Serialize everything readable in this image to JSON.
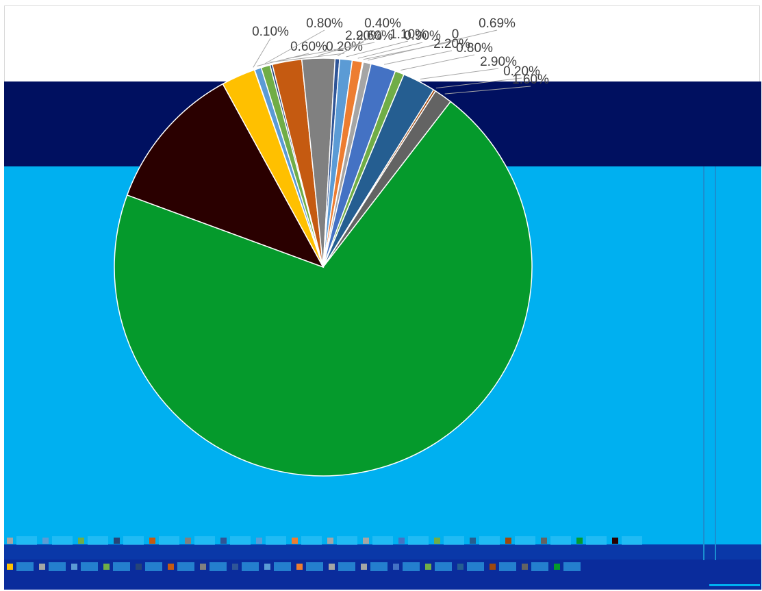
{
  "chart_data": {
    "type": "pie",
    "title": "",
    "slices": [
      {
        "label": "0.10%",
        "value": 0.1,
        "color": "#a5a5a5"
      },
      {
        "label": "0.60%",
        "value": 0.6,
        "color": "#5b9bd5"
      },
      {
        "label": "0.80%",
        "value": 0.8,
        "color": "#70ad47"
      },
      {
        "label": "0.20%",
        "value": 0.2,
        "color": "#264478"
      },
      {
        "label": "2.60%",
        "value": 2.6,
        "color": "#c55a11"
      },
      {
        "label": "2.90%",
        "value": 2.9,
        "color": "#808080"
      },
      {
        "label": "0.40%",
        "value": 0.4,
        "color": "#2f5597"
      },
      {
        "label": "1.10%",
        "value": 1.1,
        "color": "#5b9bd5"
      },
      {
        "label": "0.90%",
        "value": 0.9,
        "color": "#ed7d31"
      },
      {
        "label": "0",
        "value": 0.0,
        "color": "#a5a5a5"
      },
      {
        "label": "0.69%",
        "value": 0.69,
        "color": "#a5a5a5"
      },
      {
        "label": "2.20%",
        "value": 2.2,
        "color": "#4472c4"
      },
      {
        "label": "0.80%",
        "value": 0.8,
        "color": "#70ad47"
      },
      {
        "label": "2.90%",
        "value": 2.9,
        "color": "#255e91"
      },
      {
        "label": "0.20%",
        "value": 0.2,
        "color": "#9e480e"
      },
      {
        "label": "1.60%",
        "value": 1.6,
        "color": "#636363"
      },
      {
        "label": "",
        "value": 79.9,
        "color": "#059a2c"
      },
      {
        "label": "",
        "value": 13.0,
        "color": "#2a0000"
      },
      {
        "label": "",
        "value": 3.0,
        "color": "#ffc000"
      }
    ],
    "legend_placement": "bottom",
    "colors": {
      "background": "#ffffff",
      "band_navy": "#001060",
      "band_cyan": "#00b0f0",
      "band_blue": "#0a38a8",
      "big_slice": "#059a2c",
      "dark_slice": "#2a0000"
    }
  }
}
